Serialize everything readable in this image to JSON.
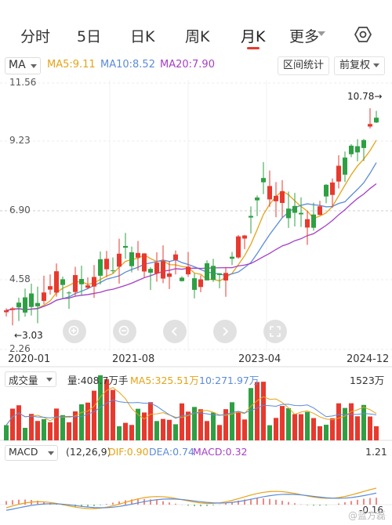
{
  "tabs": [
    "分时",
    "5日",
    "日K",
    "周K",
    "月K",
    "更多"
  ],
  "active_tab": 4,
  "legend": {
    "ma_label": "MA",
    "ma5": "MA5:9.11",
    "ma10": "MA10:8.52",
    "ma20": "MA20:7.90",
    "range_button": "区间统计",
    "adjust_button": "前复权"
  },
  "price_axis": [
    "11.56",
    "9.23",
    "6.90",
    "4.58",
    "2.26"
  ],
  "annotations": {
    "high": "10.78",
    "low": "3.03"
  },
  "dates": [
    "2020-01",
    "2021-08",
    "2023-04",
    "2024-12"
  ],
  "volume": {
    "label": "成交量",
    "vol": "量:408.7万手",
    "ma5": "MA5:325.51万",
    "ma10": "10:271.97万",
    "max": "1523万"
  },
  "macd": {
    "label": "MACD",
    "params": "(12,26,9)",
    "dif": "DIF:0.90",
    "dea": "DEA:0.74",
    "macd": "MACD:0.32",
    "top": "1.21",
    "bottom": "-0.16"
  },
  "colors": {
    "up": "#e8392e",
    "down": "#2ea043",
    "ma5": "#e6a317",
    "ma10": "#5b8bd9",
    "ma20": "#a53ec7"
  },
  "watermark": "@蓝方磊"
}
